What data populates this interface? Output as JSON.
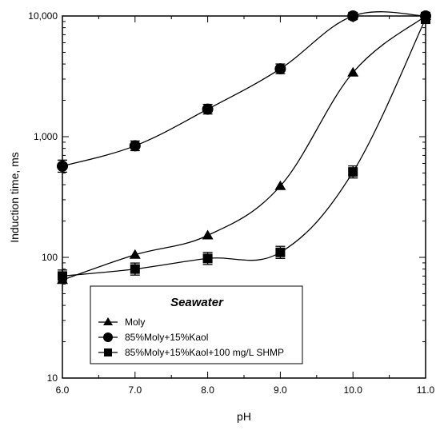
{
  "chart_data": {
    "type": "line",
    "title": "",
    "xlabel": "pH",
    "ylabel": "Induction time, ms",
    "xlim": [
      6.0,
      11.0
    ],
    "ylim": [
      10,
      10000
    ],
    "yscale": "log",
    "x_ticks": [
      6.0,
      7.0,
      8.0,
      9.0,
      10.0,
      11.0
    ],
    "x_tick_labels": [
      "6.0",
      "7.0",
      "8.0",
      "9.0",
      "10.0",
      "11.0"
    ],
    "y_ticks": [
      10,
      100,
      1000,
      10000
    ],
    "y_tick_labels": [
      "10",
      "100",
      "1,000",
      "10,000"
    ],
    "grid": false,
    "legend": {
      "title": "Seawater",
      "placement": "bottom-center"
    },
    "series": [
      {
        "name": "Moly",
        "marker": "triangle",
        "x": [
          6.0,
          7.0,
          8.0,
          9.0,
          10.0,
          11.0
        ],
        "y": [
          65,
          105,
          152,
          390,
          3400,
          10000
        ],
        "err": [
          0,
          0,
          0,
          0,
          0,
          0
        ]
      },
      {
        "name": "85%Moly+15%Kaol",
        "marker": "circle",
        "x": [
          6.0,
          7.0,
          8.0,
          9.0,
          10.0,
          11.0
        ],
        "y": [
          570,
          840,
          1690,
          3650,
          10000,
          10000
        ],
        "err": [
          0.05,
          0.04,
          0.04,
          0.04,
          0.03,
          0.03
        ]
      },
      {
        "name": "85%Moly+15%Kaol+100 mg/L SHMP",
        "marker": "square",
        "x": [
          6.0,
          7.0,
          8.0,
          9.0,
          10.0,
          11.0
        ],
        "y": [
          70,
          80,
          98,
          110,
          510,
          9500
        ],
        "err": [
          0.05,
          0.05,
          0.05,
          0.05,
          0.05,
          0.04
        ]
      }
    ]
  }
}
